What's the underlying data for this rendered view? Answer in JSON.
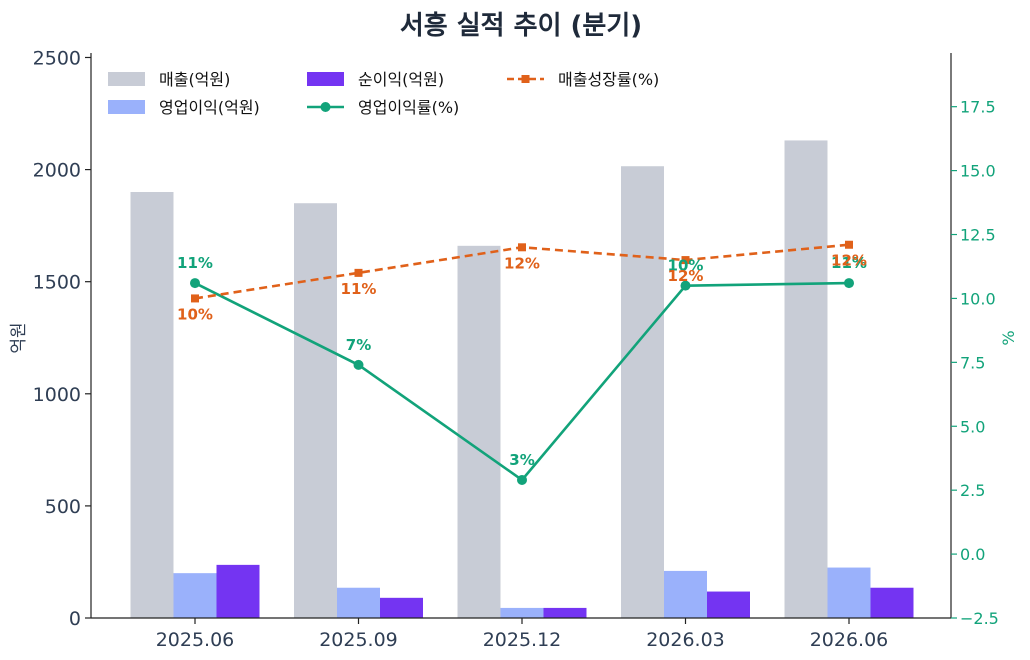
{
  "chart_data": {
    "type": "bar",
    "title": "서흥 실적 추이 (분기)",
    "categories": [
      "2025.06",
      "2025.09",
      "2025.12",
      "2026.03",
      "2026.06"
    ],
    "ylabel": "억원",
    "y2label": "%",
    "ylim": [
      0,
      2520
    ],
    "y2lim": [
      -2.5,
      19.6
    ],
    "yticks": [
      0,
      500,
      1000,
      1500,
      2000,
      2500
    ],
    "y2ticks": [
      -2.5,
      0.0,
      2.5,
      5.0,
      7.5,
      10.0,
      12.5,
      15.0,
      17.5
    ],
    "y2tick_labels": [
      "−2.5",
      "0.0",
      "2.5",
      "5.0",
      "7.5",
      "10.0",
      "12.5",
      "15.0",
      "17.5"
    ],
    "legend_position": "top-left",
    "grid": false,
    "series": [
      {
        "name": "매출(억원)",
        "kind": "bar",
        "axis": "left",
        "color": "#c8ccd6",
        "values": [
          1900,
          1850,
          1660,
          2015,
          2130
        ]
      },
      {
        "name": "영업이익(억원)",
        "kind": "bar",
        "axis": "left",
        "color": "#9ab1fb",
        "values": [
          200,
          135,
          45,
          210,
          225
        ]
      },
      {
        "name": "순이익(억원)",
        "kind": "bar",
        "axis": "left",
        "color": "#7434f2",
        "values": [
          237,
          90,
          45,
          118,
          135
        ]
      },
      {
        "name": "영업이익률(%)",
        "kind": "line",
        "axis": "right",
        "color": "#12a37a",
        "style": "solid",
        "values": [
          10.6,
          7.4,
          2.9,
          10.5,
          10.6
        ],
        "labels": [
          "11%",
          "7%",
          "3%",
          "10%",
          "11%"
        ]
      },
      {
        "name": "매출성장률(%)",
        "kind": "line",
        "axis": "right",
        "color": "#e0611a",
        "style": "dashed",
        "values": [
          10.0,
          11.0,
          12.0,
          11.5,
          12.1
        ],
        "labels": [
          "10%",
          "11%",
          "12%",
          "12%",
          "12%"
        ]
      }
    ]
  }
}
